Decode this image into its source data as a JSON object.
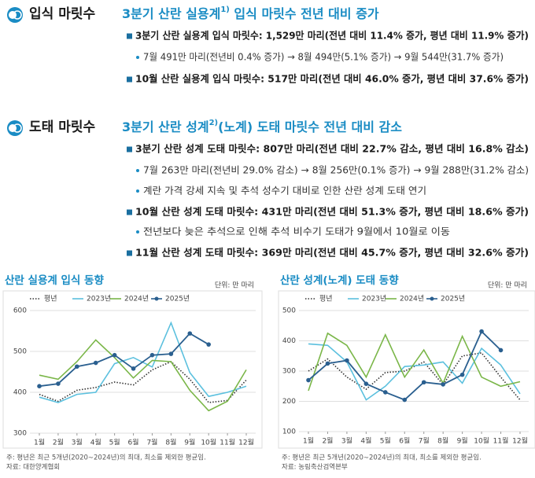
{
  "sections": [
    {
      "label": "입식 마릿수",
      "title": {
        "main": "3분기 산란 실용계",
        "note": "1)",
        "rest": " 입식 마릿수 전년 대비 증가"
      },
      "items": [
        {
          "main": "3분기 산란 실용계 입식 마릿수: 1,529만 마리(전년 대비 11.4% 증가, 평년 대비 11.9% 증가)"
        },
        {
          "sub": "7월 491만 마리(전년비 0.4% 증가) → 8월 494만(5.1% 증가) → 9월 544만(31.7% 증가)"
        },
        {
          "main": "10월 산란 실용계 입식 마릿수: 517만 마리(전년 대비 46.0% 증가, 평년 대비 37.6% 증가)"
        }
      ]
    },
    {
      "label": "도태 마릿수",
      "title": {
        "main": "3분기 산란 성계",
        "note": "2)",
        "rest": "(노계) 도태 마릿수 전년 대비 감소"
      },
      "items": [
        {
          "main": "3분기 산란 성계 도태 마릿수: 807만 마리(전년 대비 22.7% 감소, 평년 대비 16.8% 감소)"
        },
        {
          "sub": "7월 263만 마리(전년비 29.0% 감소) → 8월 256만(0.1% 증가) → 9월 288만(31.2% 감소)"
        },
        {
          "sub": "계란 가격 강세 지속 및 추석 성수기 대비로 인한 산란 성계 도태 연기"
        },
        {
          "main": "10월 산란 성계 도태 마릿수: 431만 마리(전년 대비 51.3% 증가, 평년 대비 18.6% 증가)"
        },
        {
          "sub": "전년보다 늦은 추석으로 인해 추석 비수기 도태가 9월에서 10월로 이동"
        },
        {
          "main": "11월 산란 성계 도태 마릿수: 369만 마리(전년 대비 45.7% 증가, 평년 대비 32.6% 증가)"
        }
      ]
    }
  ],
  "chart_data": [
    {
      "type": "line",
      "title": "산란 실용계 입식 동향",
      "unit": "단위: 만 마리",
      "categories": [
        "1월",
        "2월",
        "3월",
        "4월",
        "5월",
        "6월",
        "7월",
        "8월",
        "9월",
        "10월",
        "11월",
        "12월"
      ],
      "series": [
        {
          "name": "평년",
          "color": "#333333",
          "dashed": true,
          "values": [
            395,
            378,
            405,
            412,
            425,
            418,
            455,
            475,
            432,
            375,
            380,
            430
          ]
        },
        {
          "name": "2023년",
          "color": "#5bc0de",
          "values": [
            388,
            375,
            395,
            400,
            470,
            485,
            462,
            570,
            448,
            390,
            400,
            415
          ]
        },
        {
          "name": "2024년",
          "color": "#7ab648",
          "values": [
            442,
            432,
            475,
            528,
            485,
            435,
            478,
            475,
            405,
            355,
            378,
            455
          ]
        },
        {
          "name": "2025년",
          "color": "#2a5f8f",
          "markers": true,
          "values": [
            415,
            421,
            463,
            472,
            491,
            458,
            491,
            494,
            544,
            517,
            null,
            null
          ]
        }
      ],
      "ylim": [
        300,
        600
      ],
      "yticks": [
        300,
        400,
        500,
        600
      ],
      "grid": true,
      "notes": [
        "주: 평년은 최근 5개년(2020∼2024년)의 최대, 최소를 제외한 평균임.",
        "자료: 대한양계협회"
      ]
    },
    {
      "type": "line",
      "title": "산란 성계(노계) 도태 동향",
      "unit": "단위: 만 마리",
      "categories": [
        "1월",
        "2월",
        "3월",
        "4월",
        "5월",
        "6월",
        "7월",
        "8월",
        "9월",
        "10월",
        "11월",
        "12월"
      ],
      "series": [
        {
          "name": "평년",
          "color": "#333333",
          "dashed": true,
          "values": [
            300,
            340,
            280,
            240,
            295,
            300,
            330,
            255,
            350,
            360,
            280,
            205
          ]
        },
        {
          "name": "2023년",
          "color": "#5bc0de",
          "values": [
            390,
            385,
            330,
            205,
            250,
            315,
            320,
            330,
            260,
            375,
            320,
            225
          ]
        },
        {
          "name": "2024년",
          "color": "#7ab648",
          "values": [
            235,
            425,
            385,
            280,
            420,
            280,
            370,
            260,
            415,
            280,
            250,
            265
          ]
        },
        {
          "name": "2025년",
          "color": "#2a5f8f",
          "markers": true,
          "values": [
            270,
            325,
            335,
            258,
            230,
            205,
            263,
            256,
            288,
            431,
            369,
            null
          ]
        }
      ],
      "ylim": [
        100,
        500
      ],
      "yticks": [
        100,
        200,
        300,
        400,
        500
      ],
      "grid": true,
      "notes": [
        "주: 평년은 최근 5개년(2020∼2024년)의 최대, 최소를 제외한 평균임.",
        "자료: 농림축산검역본부"
      ]
    }
  ]
}
